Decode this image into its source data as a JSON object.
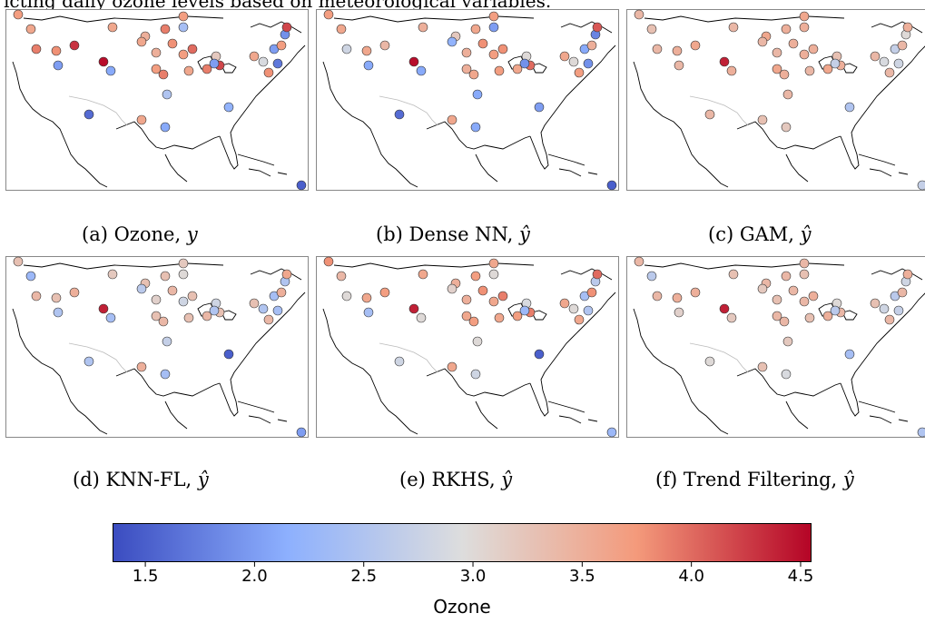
{
  "top_caption": "icting daily ozone levels based on meteorological variables.",
  "chart_data": {
    "type": "scatter",
    "description_of_marks": "station points colored by ozone value on a coolwarm scale",
    "colorbar": {
      "label": "Ozone",
      "range": [
        1.35,
        4.55
      ],
      "ticks": [
        "1.5",
        "2.0",
        "2.5",
        "3.0",
        "3.5",
        "4.0",
        "4.5"
      ],
      "tick_values": [
        1.5,
        2.0,
        2.5,
        3.0,
        3.5,
        4.0,
        4.5
      ]
    },
    "panels": [
      {
        "label": "(a) Ozone, ",
        "var": "y",
        "values": [
          3.7,
          3.6,
          3.9,
          3.8,
          4.3,
          2.0,
          3.6,
          3.5,
          3.9,
          2.4,
          3.7,
          4.5,
          2.1,
          3.6,
          3.5,
          3.7,
          3.9,
          2.5,
          3.8,
          3.7,
          4.0,
          3.6,
          3.9,
          3.2,
          4.2,
          2.0,
          3.6,
          2.9,
          3.8,
          2.0,
          3.7,
          1.7,
          1.9,
          4.2,
          1.5,
          1.6,
          3.6,
          2.1,
          2.2
        ]
      },
      {
        "label": "(b) Dense NN, ",
        "var": "ŷ",
        "values": [
          3.7,
          3.6,
          2.8,
          3.6,
          3.4,
          2.1,
          3.5,
          3.2,
          3.6,
          2.0,
          3.7,
          4.5,
          2.1,
          2.2,
          3.5,
          3.5,
          3.6,
          2.1,
          3.8,
          3.7,
          3.8,
          3.7,
          3.6,
          3.0,
          4.0,
          1.9,
          3.6,
          3.0,
          3.7,
          2.1,
          3.5,
          1.9,
          1.8,
          4.1,
          1.5,
          1.6,
          3.6,
          2.1,
          2.0
        ]
      },
      {
        "label": "(c) GAM, ",
        "var": "ŷ",
        "values": [
          3.4,
          3.3,
          3.4,
          3.5,
          3.6,
          3.4,
          3.4,
          3.6,
          3.5,
          3.5,
          3.6,
          4.4,
          3.5,
          3.4,
          3.4,
          3.6,
          3.5,
          3.4,
          3.5,
          3.5,
          3.5,
          3.4,
          3.6,
          3.3,
          3.5,
          2.7,
          3.4,
          2.9,
          3.4,
          2.7,
          3.4,
          2.8,
          3.0,
          3.5,
          2.7,
          3.4,
          3.3,
          3.2,
          2.5
        ]
      },
      {
        "label": "(d) KNN-FL, ",
        "var": "ŷ",
        "values": [
          3.3,
          2.3,
          3.4,
          3.3,
          3.5,
          2.5,
          3.2,
          3.3,
          3.3,
          3.0,
          3.2,
          4.4,
          2.4,
          2.6,
          3.1,
          3.3,
          3.4,
          2.7,
          3.4,
          2.8,
          3.3,
          3.3,
          3.4,
          2.8,
          3.3,
          2.5,
          3.3,
          2.5,
          3.4,
          2.4,
          3.5,
          2.4,
          2.5,
          3.6,
          2.0,
          2.5,
          3.5,
          2.4,
          1.5
        ]
      },
      {
        "label": "(e) RKHS, ",
        "var": "ŷ",
        "values": [
          3.8,
          3.4,
          3.0,
          3.6,
          3.7,
          2.4,
          3.6,
          3.5,
          3.7,
          3.0,
          3.6,
          4.4,
          3.0,
          3.1,
          3.5,
          3.6,
          3.7,
          3.0,
          3.8,
          3.6,
          3.9,
          3.6,
          3.7,
          2.9,
          3.9,
          2.3,
          3.6,
          3.0,
          3.6,
          2.4,
          3.8,
          2.5,
          2.6,
          4.0,
          2.3,
          2.8,
          3.6,
          2.8,
          1.5
        ]
      },
      {
        "label": "(f) Trend Filtering, ",
        "var": "ŷ",
        "values": [
          3.4,
          2.6,
          3.4,
          3.5,
          3.5,
          3.1,
          3.3,
          3.4,
          3.4,
          3.3,
          3.4,
          4.4,
          3.2,
          3.2,
          3.3,
          3.4,
          3.4,
          3.2,
          3.4,
          3.4,
          3.5,
          3.3,
          3.5,
          3.0,
          3.4,
          2.6,
          3.3,
          2.8,
          3.4,
          2.6,
          3.4,
          2.7,
          2.8,
          3.5,
          2.5,
          3.0,
          3.3,
          2.9,
          2.4
        ]
      }
    ]
  }
}
